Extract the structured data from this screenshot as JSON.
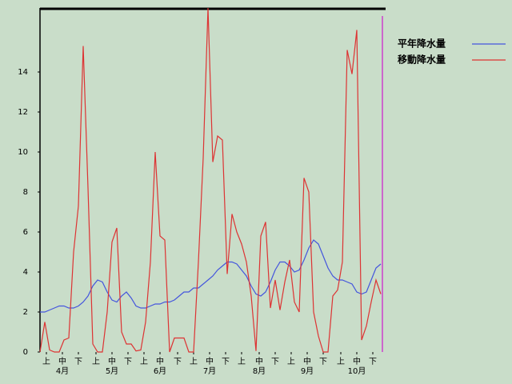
{
  "chart_data": {
    "type": "line",
    "x": [
      0,
      3,
      6,
      9,
      12,
      15,
      18,
      21,
      24,
      27,
      30,
      33,
      36,
      39,
      42,
      45,
      48,
      51,
      54,
      57,
      60,
      63,
      66,
      69,
      72,
      75,
      78,
      81,
      84,
      87,
      90,
      93,
      96,
      99,
      102,
      105,
      108,
      111,
      114,
      117,
      120,
      123,
      126,
      129,
      132,
      135,
      138,
      141,
      144,
      147,
      150,
      153,
      156,
      159,
      162,
      165,
      168,
      171,
      174,
      177,
      180,
      183,
      186,
      189,
      192,
      195,
      198,
      201,
      204,
      207,
      210,
      213
    ],
    "series": [
      {
        "name": "平年降水量",
        "color": "#4455dd",
        "values": [
          2.0,
          2.0,
          2.1,
          2.2,
          2.3,
          2.3,
          2.2,
          2.2,
          2.3,
          2.5,
          2.8,
          3.3,
          3.6,
          3.5,
          3.0,
          2.6,
          2.5,
          2.8,
          3.0,
          2.7,
          2.3,
          2.2,
          2.2,
          2.3,
          2.4,
          2.4,
          2.5,
          2.5,
          2.6,
          2.8,
          3.0,
          3.0,
          3.2,
          3.2,
          3.4,
          3.6,
          3.8,
          4.1,
          4.3,
          4.5,
          4.5,
          4.4,
          4.1,
          3.8,
          3.3,
          2.9,
          2.8,
          3.0,
          3.5,
          4.1,
          4.5,
          4.5,
          4.3,
          4.0,
          4.1,
          4.6,
          5.2,
          5.6,
          5.4,
          4.8,
          4.2,
          3.8,
          3.6,
          3.6,
          3.5,
          3.4,
          3.0,
          2.9,
          3.0,
          3.6,
          4.2,
          4.4
        ]
      },
      {
        "name": "移動降水量",
        "color": "#dd3333",
        "values": [
          0,
          1.5,
          0.1,
          0,
          0,
          0.6,
          0.7,
          5,
          7.3,
          15.3,
          8.2,
          0.4,
          0,
          0,
          2,
          5.5,
          6.2,
          1.0,
          0.4,
          0.4,
          0.05,
          0.1,
          1.5,
          4.5,
          10.0,
          5.8,
          5.6,
          0,
          0.7,
          0.7,
          0.7,
          0,
          0,
          4.5,
          9.7,
          17.2,
          9.5,
          10.8,
          10.6,
          3.9,
          6.9,
          6.0,
          5.4,
          4.5,
          2.8,
          0.05,
          5.8,
          6.5,
          2.2,
          3.6,
          2.1,
          3.5,
          4.6,
          2.5,
          2.0,
          8.7,
          8.0,
          2.0,
          0.8,
          0,
          0,
          2.8,
          3.1,
          4.5,
          15.1,
          13.9,
          16.1,
          0.6,
          1.3,
          2.5,
          3.6,
          2.9
        ]
      }
    ],
    "xlim": [
      0,
      216
    ],
    "xticks": [
      {
        "value": 4,
        "label": "上"
      },
      {
        "value": 14,
        "label": "中"
      },
      {
        "value": 24,
        "label": "下"
      },
      {
        "value": 35,
        "label": "上"
      },
      {
        "value": 45,
        "label": "中"
      },
      {
        "value": 55,
        "label": "下"
      },
      {
        "value": 65,
        "label": "上"
      },
      {
        "value": 75,
        "label": "中"
      },
      {
        "value": 86,
        "label": "下"
      },
      {
        "value": 96,
        "label": "上"
      },
      {
        "value": 106,
        "label": "中"
      },
      {
        "value": 116,
        "label": "下"
      },
      {
        "value": 126,
        "label": "上"
      },
      {
        "value": 137,
        "label": "中"
      },
      {
        "value": 147,
        "label": "下"
      },
      {
        "value": 157,
        "label": "上"
      },
      {
        "value": 167,
        "label": "中"
      },
      {
        "value": 177,
        "label": "下"
      },
      {
        "value": 188,
        "label": "上"
      },
      {
        "value": 198,
        "label": "中"
      },
      {
        "value": 208,
        "label": "下"
      }
    ],
    "month_labels": [
      {
        "value": 14,
        "label": "4月"
      },
      {
        "value": 45,
        "label": "5月"
      },
      {
        "value": 75,
        "label": "6月"
      },
      {
        "value": 106,
        "label": "7月"
      },
      {
        "value": 137,
        "label": "8月"
      },
      {
        "value": 167,
        "label": "9月"
      },
      {
        "value": 198,
        "label": "10月"
      }
    ],
    "ylim": [
      0,
      17.2
    ],
    "yticks": [
      0,
      2,
      4,
      6,
      8,
      10,
      12,
      14
    ],
    "legend": "right"
  }
}
